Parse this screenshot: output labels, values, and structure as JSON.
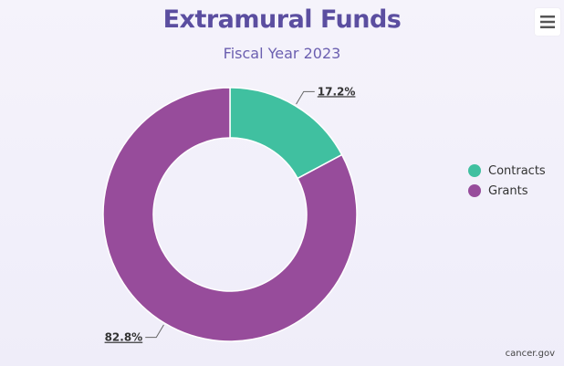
{
  "chart_data": {
    "type": "pie",
    "variant": "donut",
    "title": "Extramural Funds",
    "subtitle": "Fiscal Year 2023",
    "categories": [
      "Contracts",
      "Grants"
    ],
    "values": [
      17.2,
      82.8
    ],
    "labels": [
      "17.2%",
      "82.8%"
    ],
    "colors": [
      "#40c0a0",
      "#974c9b"
    ],
    "legend_position": "right"
  },
  "credit": "cancer.gov",
  "menu": {
    "icon": "hamburger-menu-icon"
  }
}
